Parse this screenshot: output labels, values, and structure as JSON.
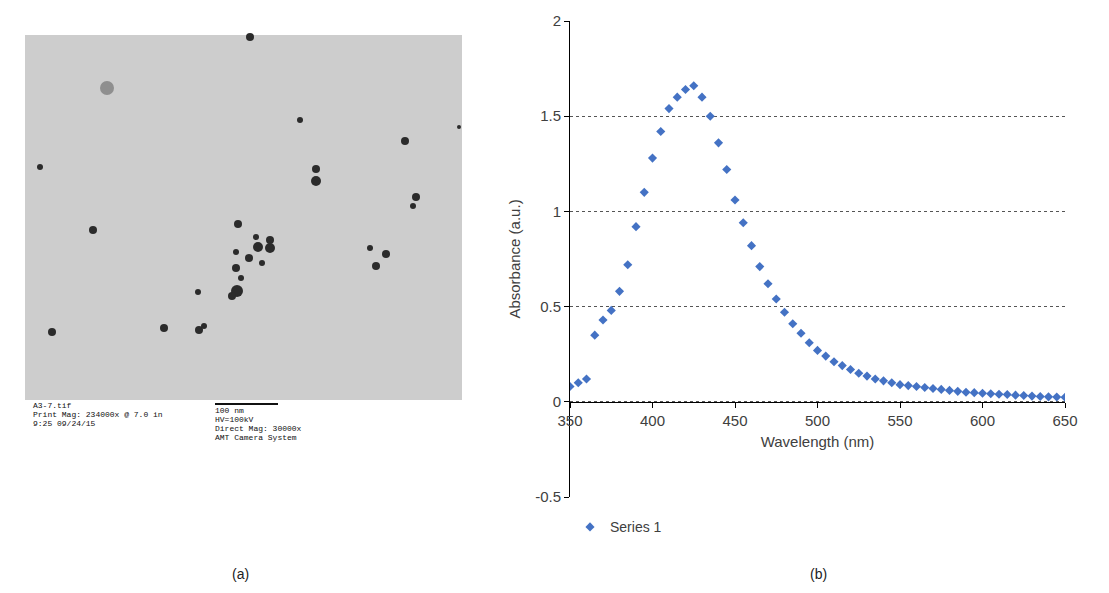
{
  "image_panel": {
    "label": "(a)",
    "caption_left": [
      "A3-7.tif",
      "Print Mag: 234000x @ 7.0 in",
      "9:25 09/24/15"
    ],
    "scale_bar": "100 nm",
    "caption_right": [
      "HV=100kV",
      "Direct Mag: 30000x",
      "AMT Camera System"
    ]
  },
  "chart_panel_label": "(b)",
  "chart_data": {
    "type": "scatter",
    "x_label": "Wavelength (nm)",
    "y_label": "Absorbance (a.u.)",
    "x": [
      350,
      355,
      360,
      365,
      370,
      375,
      380,
      385,
      390,
      395,
      400,
      405,
      410,
      415,
      420,
      425,
      430,
      435,
      440,
      445,
      450,
      455,
      460,
      465,
      470,
      475,
      480,
      485,
      490,
      495,
      500,
      505,
      510,
      515,
      520,
      525,
      530,
      535,
      540,
      545,
      550,
      555,
      560,
      565,
      570,
      575,
      580,
      585,
      590,
      595,
      600,
      605,
      610,
      615,
      620,
      625,
      630,
      635,
      640,
      645,
      650
    ],
    "series": [
      {
        "name": "Series 1",
        "color": "#4472c4",
        "marker": "diamond",
        "values": [
          0.08,
          0.1,
          0.12,
          0.35,
          0.43,
          0.48,
          0.58,
          0.72,
          0.92,
          1.1,
          1.28,
          1.42,
          1.54,
          1.6,
          1.64,
          1.66,
          1.6,
          1.5,
          1.36,
          1.22,
          1.06,
          0.94,
          0.82,
          0.71,
          0.62,
          0.54,
          0.47,
          0.41,
          0.36,
          0.31,
          0.27,
          0.24,
          0.21,
          0.19,
          0.17,
          0.15,
          0.135,
          0.12,
          0.11,
          0.1,
          0.09,
          0.085,
          0.08,
          0.075,
          0.07,
          0.065,
          0.06,
          0.055,
          0.05,
          0.048,
          0.045,
          0.042,
          0.04,
          0.038,
          0.035,
          0.033,
          0.03,
          0.028,
          0.026,
          0.025,
          0.024
        ]
      }
    ],
    "xlim": [
      350,
      650
    ],
    "xticks": [
      350,
      400,
      450,
      500,
      550,
      600,
      650
    ],
    "ylim": [
      -0.5,
      2
    ],
    "yticks": [
      -0.5,
      0,
      0.5,
      1,
      1.5,
      2
    ],
    "grid": true,
    "legend": "bottom"
  }
}
